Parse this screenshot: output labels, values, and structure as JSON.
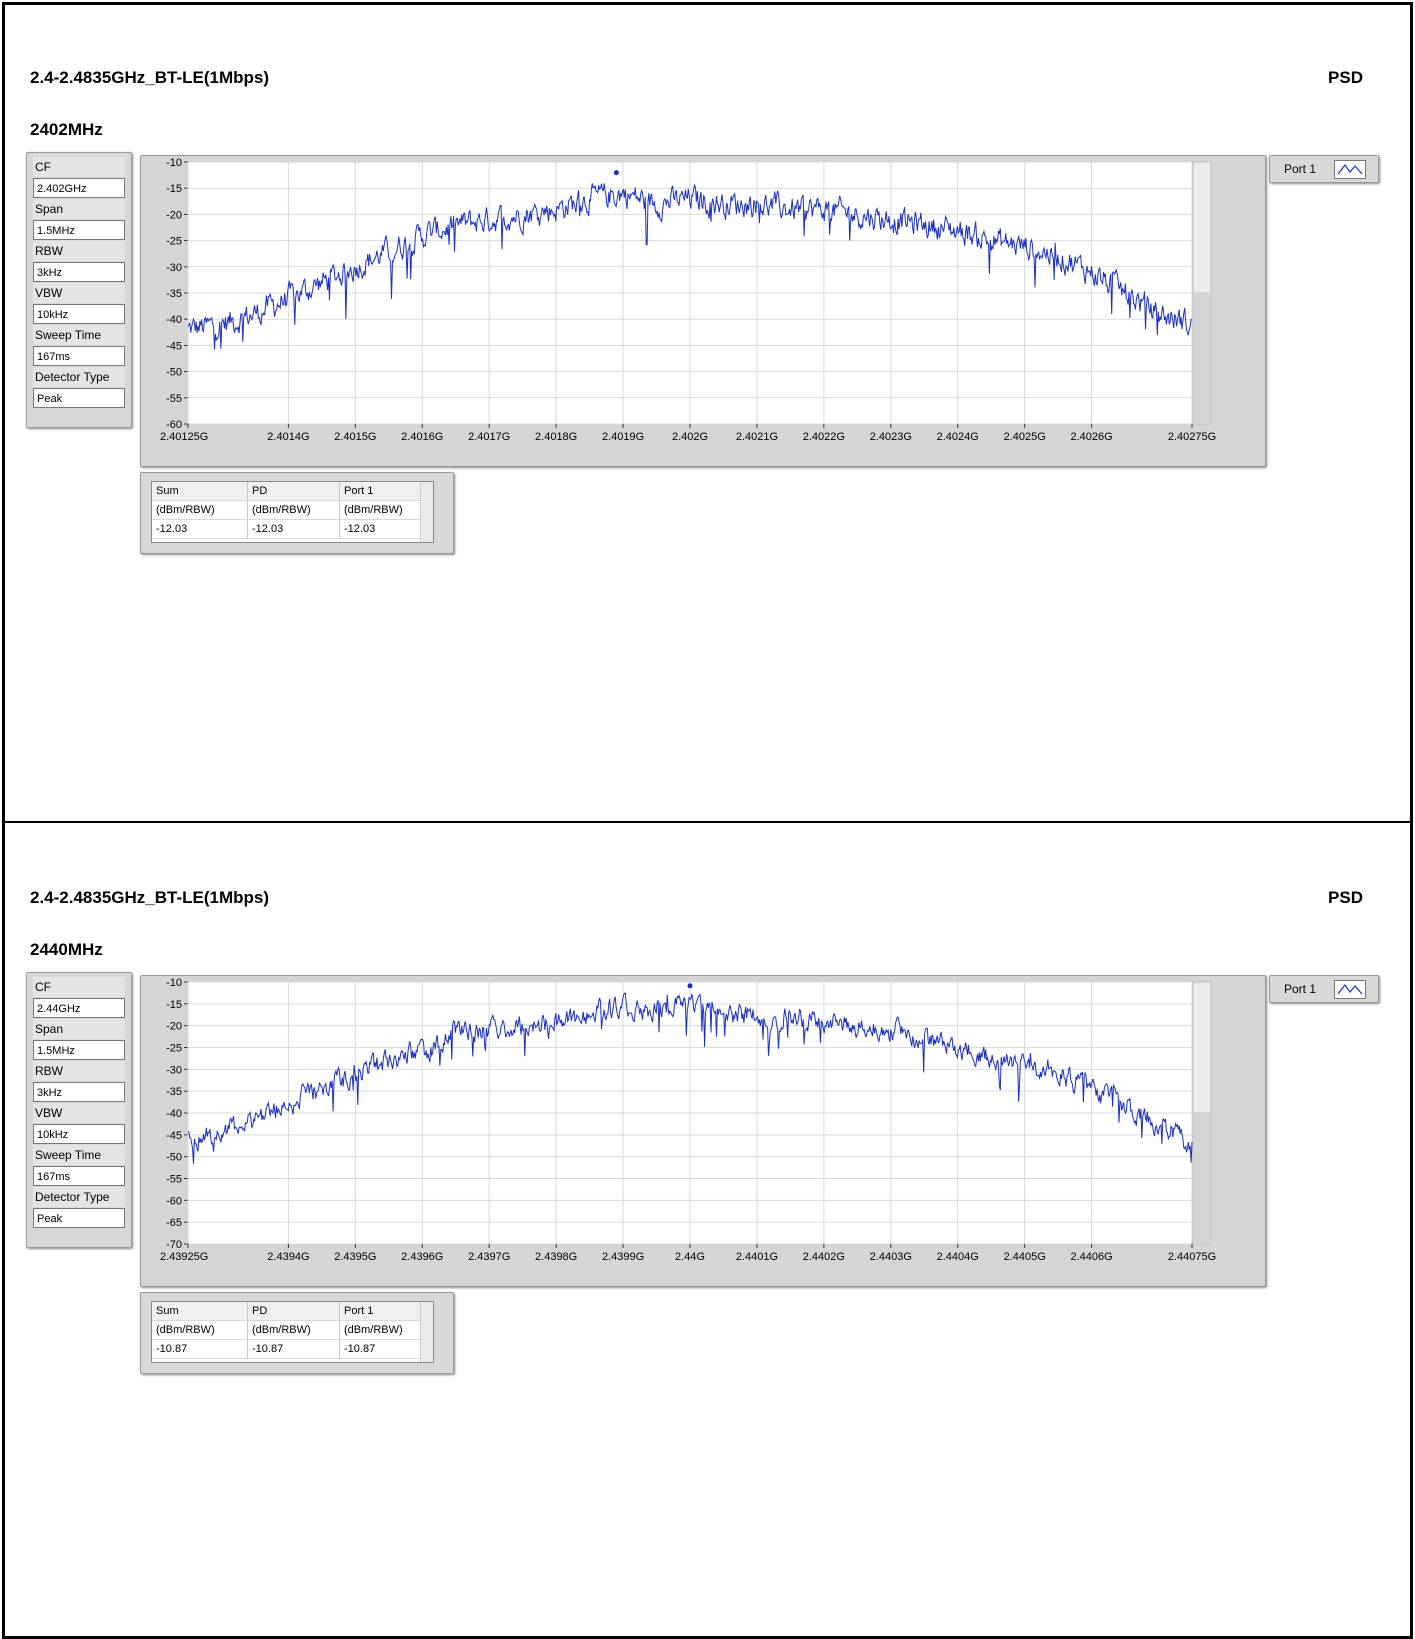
{
  "sections": [
    {
      "title": "2.4-2.4835GHz_BT-LE(1Mbps)",
      "psd_label": "PSD",
      "freq_label": "2402MHz",
      "params": [
        {
          "label": "CF",
          "value": "2.402GHz"
        },
        {
          "label": "Span",
          "value": "1.5MHz"
        },
        {
          "label": "RBW",
          "value": "3kHz"
        },
        {
          "label": "VBW",
          "value": "10kHz"
        },
        {
          "label": "Sweep Time",
          "value": "167ms"
        },
        {
          "label": "Detector Type",
          "value": "Peak"
        }
      ],
      "legend": {
        "name": "Port 1"
      },
      "table": {
        "headers": [
          "Sum",
          "PD",
          "Port 1"
        ],
        "units": [
          "(dBm/RBW)",
          "(dBm/RBW)",
          "(dBm/RBW)"
        ],
        "values": [
          "-12.03",
          "-12.03",
          "-12.03"
        ]
      }
    },
    {
      "title": "2.4-2.4835GHz_BT-LE(1Mbps)",
      "psd_label": "PSD",
      "freq_label": "2440MHz",
      "params": [
        {
          "label": "CF",
          "value": "2.44GHz"
        },
        {
          "label": "Span",
          "value": "1.5MHz"
        },
        {
          "label": "RBW",
          "value": "3kHz"
        },
        {
          "label": "VBW",
          "value": "10kHz"
        },
        {
          "label": "Sweep Time",
          "value": "167ms"
        },
        {
          "label": "Detector Type",
          "value": "Peak"
        }
      ],
      "legend": {
        "name": "Port 1"
      },
      "table": {
        "headers": [
          "Sum",
          "PD",
          "Port 1"
        ],
        "units": [
          "(dBm/RBW)",
          "(dBm/RBW)",
          "(dBm/RBW)"
        ],
        "values": [
          "-10.87",
          "-10.87",
          "-10.87"
        ]
      }
    }
  ],
  "chart_data": [
    {
      "type": "line",
      "title": "",
      "xlabel": "",
      "ylabel": "",
      "xlim": [
        2.40125,
        2.40275
      ],
      "ylim": [
        -60,
        -10
      ],
      "y_ticks": [
        -10,
        -15,
        -20,
        -25,
        -30,
        -35,
        -40,
        -45,
        -50,
        -55,
        -60
      ],
      "x_ticks": [
        2.40125,
        2.4014,
        2.4015,
        2.4016,
        2.4017,
        2.4018,
        2.4019,
        2.402,
        2.4021,
        2.4022,
        2.4023,
        2.4024,
        2.4025,
        2.4026,
        2.40275
      ],
      "x_tick_labels": [
        "2.40125G",
        "2.4014G",
        "2.4015G",
        "2.4016G",
        "2.4017G",
        "2.4018G",
        "2.4019G",
        "2.402G",
        "2.4021G",
        "2.4022G",
        "2.4023G",
        "2.4024G",
        "2.4025G",
        "2.4026G",
        "2.40275G"
      ],
      "grid": true,
      "color": "#1c2fc4",
      "series": [
        {
          "x": [
            2.40125,
            2.4013,
            2.40135,
            2.4014,
            2.40145,
            2.4015,
            2.40155,
            2.4016,
            2.40165,
            2.4017,
            2.40175,
            2.4018,
            2.40185,
            2.4019,
            2.40195,
            2.402,
            2.40205,
            2.4021,
            2.40215,
            2.4022,
            2.40225,
            2.4023,
            2.40235,
            2.4024,
            2.40245,
            2.4025,
            2.40255,
            2.4026,
            2.40265,
            2.4027,
            2.40275
          ],
          "y": [
            -42,
            -41,
            -39,
            -36,
            -33,
            -30,
            -27,
            -24,
            -22,
            -21,
            -20,
            -19,
            -17,
            -16,
            -18,
            -17,
            -18,
            -18,
            -19,
            -19,
            -20,
            -21,
            -22,
            -23,
            -25,
            -26,
            -28,
            -31,
            -35,
            -39,
            -41
          ]
        }
      ],
      "peak_marker": {
        "x": 2.40189,
        "y": -12.03
      }
    },
    {
      "type": "line",
      "title": "",
      "xlabel": "",
      "ylabel": "",
      "xlim": [
        2.43925,
        2.44075
      ],
      "ylim": [
        -70,
        -10
      ],
      "y_ticks": [
        -10,
        -15,
        -20,
        -25,
        -30,
        -35,
        -40,
        -45,
        -50,
        -55,
        -60,
        -65,
        -70
      ],
      "x_ticks": [
        2.43925,
        2.4394,
        2.4395,
        2.4396,
        2.4397,
        2.4398,
        2.4399,
        2.44,
        2.4401,
        2.4402,
        2.4403,
        2.4404,
        2.4405,
        2.4406,
        2.44075
      ],
      "x_tick_labels": [
        "2.43925G",
        "2.4394G",
        "2.4395G",
        "2.4396G",
        "2.4397G",
        "2.4398G",
        "2.4399G",
        "2.44G",
        "2.4401G",
        "2.4402G",
        "2.4403G",
        "2.4404G",
        "2.4405G",
        "2.4406G",
        "2.44075G"
      ],
      "grid": true,
      "color": "#1c2fc4",
      "series": [
        {
          "x": [
            2.43925,
            2.4393,
            2.43935,
            2.4394,
            2.43945,
            2.4395,
            2.43955,
            2.4396,
            2.43965,
            2.4397,
            2.43975,
            2.4398,
            2.43985,
            2.4399,
            2.43995,
            2.44,
            2.44005,
            2.4401,
            2.44015,
            2.4402,
            2.44025,
            2.4403,
            2.44035,
            2.4404,
            2.44045,
            2.4405,
            2.44055,
            2.4406,
            2.44065,
            2.4407,
            2.44075
          ],
          "y": [
            -46,
            -44,
            -41,
            -38,
            -34,
            -31,
            -28,
            -26,
            -22,
            -21,
            -20,
            -19,
            -17,
            -16,
            -16,
            -15,
            -17,
            -18,
            -18,
            -19,
            -20,
            -21,
            -23,
            -25,
            -27,
            -28,
            -31,
            -35,
            -38,
            -43,
            -47
          ]
        }
      ],
      "peak_marker": {
        "x": 2.44,
        "y": -10.87
      }
    }
  ]
}
